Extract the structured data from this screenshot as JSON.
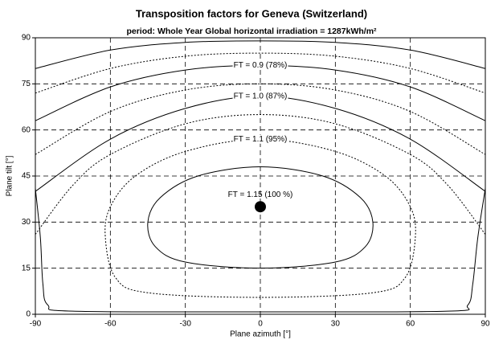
{
  "chart_data": {
    "type": "contour",
    "title": "Transposition factors for Geneva (Switzerland)",
    "subtitle": "period: Whole Year Global horizontal irradiation =  1287kWh/m²",
    "xlabel": "Plane azimuth [°]",
    "ylabel": "Plane tilt [°]",
    "xlim": [
      -90,
      90
    ],
    "ylim": [
      0,
      90
    ],
    "xticks": [
      -90,
      -60,
      -30,
      0,
      30,
      60,
      90
    ],
    "yticks": [
      0,
      15,
      30,
      45,
      60,
      75,
      90
    ],
    "grid": true,
    "color": "#000000",
    "contours": [
      {
        "dash": false,
        "closed": false,
        "x": [
          -90,
          -60,
          -30,
          0,
          30,
          60,
          90
        ],
        "y": [
          80,
          86,
          88.5,
          89,
          88.5,
          86,
          80
        ]
      },
      {
        "dash": true,
        "closed": false,
        "x": [
          -90,
          -60,
          -30,
          0,
          30,
          60,
          90
        ],
        "y": [
          72,
          80,
          84,
          85,
          84,
          80,
          72
        ]
      },
      {
        "dash": false,
        "closed": false,
        "label": "FT = 0.9 (78%)",
        "x": [
          -90,
          -60,
          -30,
          0,
          30,
          60,
          90
        ],
        "y": [
          63,
          74,
          79.5,
          81,
          79.5,
          74,
          63
        ]
      },
      {
        "dash": true,
        "closed": false,
        "x": [
          -90,
          -60,
          -30,
          0,
          30,
          60,
          90
        ],
        "y": [
          52,
          66,
          73,
          75,
          73,
          66,
          52
        ]
      },
      {
        "dash": false,
        "closed": false,
        "label": "FT = 1.0 (87%)",
        "x": [
          -90,
          -60,
          -30,
          0,
          30,
          60,
          90
        ],
        "y": [
          40,
          57,
          67,
          71,
          67,
          57,
          40
        ]
      },
      {
        "dash": true,
        "closed": false,
        "x": [
          -90,
          -75,
          -60,
          -30,
          0,
          30,
          60,
          75,
          90
        ],
        "y": [
          26,
          42,
          52,
          62,
          65,
          62,
          52,
          42,
          26
        ]
      },
      {
        "dash": false,
        "closed": false,
        "x": [
          -90,
          -88,
          -87,
          -85,
          -75,
          0,
          75,
          83,
          85,
          87,
          90
        ],
        "y": [
          41,
          25,
          10,
          3,
          1,
          0.8,
          1,
          3,
          10,
          25,
          41
        ]
      },
      {
        "dash": true,
        "closed": true,
        "label": "FT = 1.1 (95%)",
        "x": [
          0,
          30,
          50,
          60,
          62,
          58,
          45,
          0,
          -45,
          -58,
          -62,
          -60,
          -50,
          -30
        ],
        "y": [
          57,
          53,
          45,
          35,
          25,
          12,
          7,
          5.5,
          7,
          12,
          25,
          35,
          45,
          53
        ]
      },
      {
        "dash": false,
        "closed": true,
        "x": [
          0,
          25,
          40,
          45,
          42,
          30,
          0,
          -30,
          -42,
          -45,
          -40,
          -25
        ],
        "y": [
          48,
          45,
          38,
          30,
          22,
          17,
          15,
          17,
          22,
          30,
          38,
          45
        ]
      }
    ],
    "optimum": {
      "x": 0,
      "y": 35,
      "label": "FT = 1.15 (100 %)"
    }
  }
}
